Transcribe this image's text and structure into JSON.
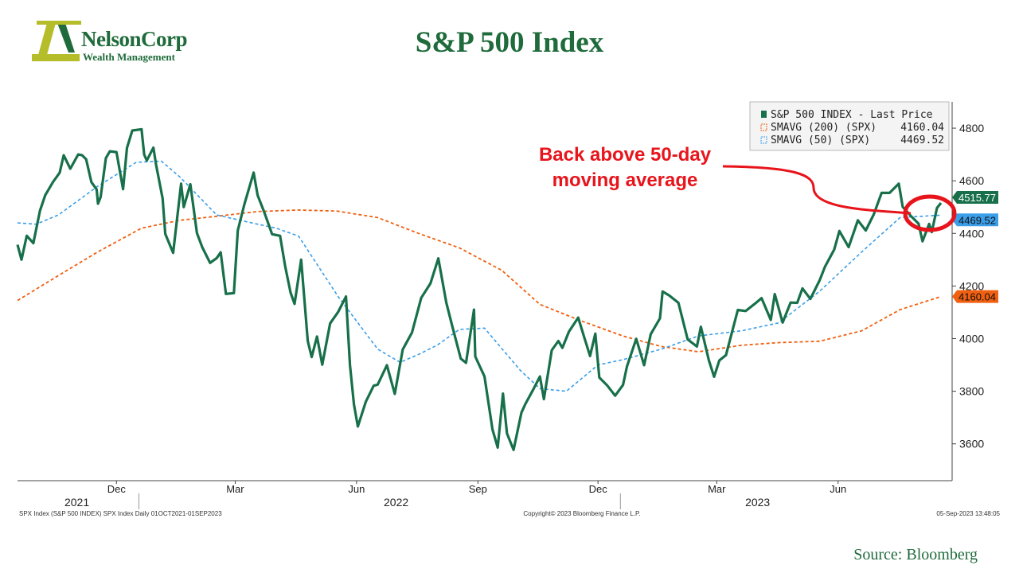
{
  "header": {
    "title": "S&P 500 Index",
    "logo_name": "NelsonCorp",
    "logo_subtitle": "Wealth Management",
    "logo_icon": "nelsoncorp-n-logo"
  },
  "source": "Source: Bloomberg",
  "footer": {
    "left": "SPX Index (S&P 500 INDEX) SPX Index  Daily 01OCT2021-01SEP2023",
    "center": "Copyright© 2023 Bloomberg Finance L.P.",
    "right": "05-Sep-2023 13:48:05"
  },
  "annotation": {
    "lines": [
      "Back above 50-day",
      "moving average"
    ],
    "color": "#e8141b"
  },
  "colors": {
    "price": "#17704a",
    "sma200": "#f06010",
    "sma50": "#3a9ee8",
    "brand": "#1f6b3b",
    "logo_accent": "#b5bd2a"
  },
  "chart_data": {
    "type": "line",
    "title": "S&P 500 Index",
    "x_range": [
      "2021-10-01",
      "2023-09-01"
    ],
    "ylim": [
      3460,
      4900
    ],
    "y_ticks": [
      3600,
      3800,
      4000,
      4200,
      4400,
      4600,
      4800
    ],
    "x_ticks": [
      {
        "label": "Dec",
        "date": "2021-12-15"
      },
      {
        "label": "Mar",
        "date": "2022-03-15"
      },
      {
        "label": "Jun",
        "date": "2022-06-15"
      },
      {
        "label": "Sep",
        "date": "2022-09-15"
      },
      {
        "label": "Dec",
        "date": "2022-12-15"
      },
      {
        "label": "Mar",
        "date": "2023-03-15"
      },
      {
        "label": "Jun",
        "date": "2023-06-15"
      }
    ],
    "year_labels": [
      {
        "label": "2021",
        "date": "2021-11-15"
      },
      {
        "label": "2022",
        "date": "2022-07-15"
      },
      {
        "label": "2023",
        "date": "2023-04-15"
      }
    ],
    "year_dividers": [
      "2022-01-01",
      "2023-01-01"
    ],
    "legend": {
      "position": "top-right",
      "entries": [
        {
          "label": "S&P 500 INDEX - Last Price",
          "value": ""
        },
        {
          "label": "SMAVG (200) (SPX)",
          "value": "4160.04"
        },
        {
          "label": "SMAVG (50) (SPX)",
          "value": "4469.52"
        }
      ]
    },
    "last_value_labels": [
      "4515.77",
      "4469.52",
      "4160.04"
    ],
    "series": [
      {
        "name": "S&P 500 INDEX - Last Price",
        "points": [
          [
            "2021-10-01",
            4357
          ],
          [
            "2021-10-04",
            4300
          ],
          [
            "2021-10-08",
            4391
          ],
          [
            "2021-10-13",
            4363
          ],
          [
            "2021-10-18",
            4486
          ],
          [
            "2021-10-22",
            4545
          ],
          [
            "2021-10-28",
            4596
          ],
          [
            "2021-11-02",
            4631
          ],
          [
            "2021-11-05",
            4697
          ],
          [
            "2021-11-10",
            4646
          ],
          [
            "2021-11-16",
            4700
          ],
          [
            "2021-11-19",
            4697
          ],
          [
            "2021-11-22",
            4682
          ],
          [
            "2021-11-26",
            4595
          ],
          [
            "2021-11-30",
            4567
          ],
          [
            "2021-12-01",
            4513
          ],
          [
            "2021-12-03",
            4538
          ],
          [
            "2021-12-07",
            4686
          ],
          [
            "2021-12-10",
            4712
          ],
          [
            "2021-12-15",
            4709
          ],
          [
            "2021-12-20",
            4568
          ],
          [
            "2021-12-23",
            4725
          ],
          [
            "2021-12-27",
            4791
          ],
          [
            "2022-01-03",
            4796
          ],
          [
            "2022-01-05",
            4700
          ],
          [
            "2022-01-07",
            4677
          ],
          [
            "2022-01-12",
            4726
          ],
          [
            "2022-01-14",
            4662
          ],
          [
            "2022-01-19",
            4532
          ],
          [
            "2022-01-21",
            4398
          ],
          [
            "2022-01-27",
            4326
          ],
          [
            "2022-02-02",
            4589
          ],
          [
            "2022-02-04",
            4500
          ],
          [
            "2022-02-09",
            4587
          ],
          [
            "2022-02-14",
            4401
          ],
          [
            "2022-02-18",
            4348
          ],
          [
            "2022-02-24",
            4288
          ],
          [
            "2022-03-01",
            4306
          ],
          [
            "2022-03-04",
            4328
          ],
          [
            "2022-03-08",
            4170
          ],
          [
            "2022-03-14",
            4173
          ],
          [
            "2022-03-17",
            4411
          ],
          [
            "2022-03-22",
            4511
          ],
          [
            "2022-03-29",
            4631
          ],
          [
            "2022-04-01",
            4545
          ],
          [
            "2022-04-06",
            4481
          ],
          [
            "2022-04-12",
            4397
          ],
          [
            "2022-04-18",
            4391
          ],
          [
            "2022-04-22",
            4272
          ],
          [
            "2022-04-26",
            4175
          ],
          [
            "2022-04-29",
            4132
          ],
          [
            "2022-05-04",
            4300
          ],
          [
            "2022-05-09",
            3991
          ],
          [
            "2022-05-12",
            3930
          ],
          [
            "2022-05-16",
            4008
          ],
          [
            "2022-05-20",
            3901
          ],
          [
            "2022-05-26",
            4058
          ],
          [
            "2022-06-01",
            4101
          ],
          [
            "2022-06-07",
            4160
          ],
          [
            "2022-06-10",
            3900
          ],
          [
            "2022-06-13",
            3750
          ],
          [
            "2022-06-16",
            3666
          ],
          [
            "2022-06-22",
            3760
          ],
          [
            "2022-06-28",
            3821
          ],
          [
            "2022-07-01",
            3825
          ],
          [
            "2022-07-08",
            3899
          ],
          [
            "2022-07-14",
            3790
          ],
          [
            "2022-07-20",
            3959
          ],
          [
            "2022-07-27",
            4023
          ],
          [
            "2022-08-03",
            4155
          ],
          [
            "2022-08-10",
            4210
          ],
          [
            "2022-08-16",
            4305
          ],
          [
            "2022-08-22",
            4137
          ],
          [
            "2022-08-26",
            4058
          ],
          [
            "2022-09-02",
            3924
          ],
          [
            "2022-09-06",
            3908
          ],
          [
            "2022-09-12",
            4110
          ],
          [
            "2022-09-13",
            3932
          ],
          [
            "2022-09-20",
            3856
          ],
          [
            "2022-09-26",
            3655
          ],
          [
            "2022-09-30",
            3586
          ],
          [
            "2022-10-04",
            3791
          ],
          [
            "2022-10-07",
            3640
          ],
          [
            "2022-10-12",
            3577
          ],
          [
            "2022-10-18",
            3719
          ],
          [
            "2022-10-21",
            3752
          ],
          [
            "2022-10-27",
            3807
          ],
          [
            "2022-11-01",
            3856
          ],
          [
            "2022-11-04",
            3770
          ],
          [
            "2022-11-10",
            3956
          ],
          [
            "2022-11-15",
            3991
          ],
          [
            "2022-11-18",
            3965
          ],
          [
            "2022-11-23",
            4027
          ],
          [
            "2022-11-30",
            4080
          ],
          [
            "2022-12-05",
            3998
          ],
          [
            "2022-12-09",
            3934
          ],
          [
            "2022-12-13",
            4019
          ],
          [
            "2022-12-16",
            3852
          ],
          [
            "2022-12-22",
            3822
          ],
          [
            "2022-12-28",
            3783
          ],
          [
            "2023-01-03",
            3824
          ],
          [
            "2023-01-06",
            3895
          ],
          [
            "2023-01-13",
            3999
          ],
          [
            "2023-01-19",
            3899
          ],
          [
            "2023-01-24",
            4017
          ],
          [
            "2023-01-31",
            4077
          ],
          [
            "2023-02-02",
            4179
          ],
          [
            "2023-02-07",
            4164
          ],
          [
            "2023-02-14",
            4136
          ],
          [
            "2023-02-21",
            3997
          ],
          [
            "2023-02-28",
            3970
          ],
          [
            "2023-03-03",
            4045
          ],
          [
            "2023-03-09",
            3919
          ],
          [
            "2023-03-13",
            3855
          ],
          [
            "2023-03-17",
            3917
          ],
          [
            "2023-03-22",
            3937
          ],
          [
            "2023-03-31",
            4109
          ],
          [
            "2023-04-06",
            4105
          ],
          [
            "2023-04-14",
            4137
          ],
          [
            "2023-04-18",
            4154
          ],
          [
            "2023-04-25",
            4071
          ],
          [
            "2023-04-28",
            4169
          ],
          [
            "2023-05-04",
            4061
          ],
          [
            "2023-05-10",
            4137
          ],
          [
            "2023-05-15",
            4136
          ],
          [
            "2023-05-19",
            4191
          ],
          [
            "2023-05-25",
            4151
          ],
          [
            "2023-06-01",
            4221
          ],
          [
            "2023-06-05",
            4273
          ],
          [
            "2023-06-12",
            4338
          ],
          [
            "2023-06-16",
            4409
          ],
          [
            "2023-06-23",
            4348
          ],
          [
            "2023-06-30",
            4450
          ],
          [
            "2023-07-06",
            4411
          ],
          [
            "2023-07-12",
            4472
          ],
          [
            "2023-07-18",
            4554
          ],
          [
            "2023-07-24",
            4554
          ],
          [
            "2023-07-31",
            4589
          ],
          [
            "2023-08-03",
            4501
          ],
          [
            "2023-08-09",
            4467
          ],
          [
            "2023-08-15",
            4437
          ],
          [
            "2023-08-18",
            4370
          ],
          [
            "2023-08-23",
            4436
          ],
          [
            "2023-08-25",
            4405
          ],
          [
            "2023-08-29",
            4497
          ],
          [
            "2023-09-01",
            4515.77
          ]
        ]
      },
      {
        "name": "SMAVG (200) (SPX)",
        "points": [
          [
            "2021-10-01",
            4145
          ],
          [
            "2021-11-01",
            4240
          ],
          [
            "2021-12-01",
            4330
          ],
          [
            "2022-01-03",
            4420
          ],
          [
            "2022-02-01",
            4450
          ],
          [
            "2022-03-01",
            4465
          ],
          [
            "2022-04-01",
            4483
          ],
          [
            "2022-05-02",
            4489
          ],
          [
            "2022-05-31",
            4485
          ],
          [
            "2022-07-01",
            4460
          ],
          [
            "2022-08-01",
            4400
          ],
          [
            "2022-09-01",
            4345
          ],
          [
            "2022-10-03",
            4260
          ],
          [
            "2022-11-01",
            4130
          ],
          [
            "2022-12-01",
            4070
          ],
          [
            "2023-01-03",
            4010
          ],
          [
            "2023-02-01",
            3970
          ],
          [
            "2023-03-01",
            3950
          ],
          [
            "2023-04-03",
            3975
          ],
          [
            "2023-05-01",
            3985
          ],
          [
            "2023-06-01",
            3990
          ],
          [
            "2023-07-03",
            4030
          ],
          [
            "2023-08-01",
            4110
          ],
          [
            "2023-09-01",
            4160.04
          ]
        ]
      },
      {
        "name": "SMAVG (50) (SPX)",
        "points": [
          [
            "2021-10-01",
            4440
          ],
          [
            "2021-10-15",
            4435
          ],
          [
            "2021-11-01",
            4470
          ],
          [
            "2021-12-01",
            4580
          ],
          [
            "2021-12-30",
            4670
          ],
          [
            "2022-01-18",
            4675
          ],
          [
            "2022-02-01",
            4615
          ],
          [
            "2022-03-01",
            4470
          ],
          [
            "2022-04-01",
            4435
          ],
          [
            "2022-04-15",
            4420
          ],
          [
            "2022-05-02",
            4390
          ],
          [
            "2022-06-01",
            4160
          ],
          [
            "2022-07-01",
            3960
          ],
          [
            "2022-07-18",
            3910
          ],
          [
            "2022-08-01",
            3940
          ],
          [
            "2022-08-15",
            3975
          ],
          [
            "2022-09-01",
            4035
          ],
          [
            "2022-09-20",
            4040
          ],
          [
            "2022-10-17",
            3880
          ],
          [
            "2022-11-01",
            3810
          ],
          [
            "2022-11-21",
            3800
          ],
          [
            "2022-12-15",
            3900
          ],
          [
            "2023-01-03",
            3920
          ],
          [
            "2023-02-01",
            3960
          ],
          [
            "2023-03-01",
            4010
          ],
          [
            "2023-04-03",
            4030
          ],
          [
            "2023-05-01",
            4060
          ],
          [
            "2023-06-01",
            4180
          ],
          [
            "2023-07-03",
            4330
          ],
          [
            "2023-08-01",
            4460
          ],
          [
            "2023-09-01",
            4469.52
          ]
        ]
      }
    ]
  }
}
